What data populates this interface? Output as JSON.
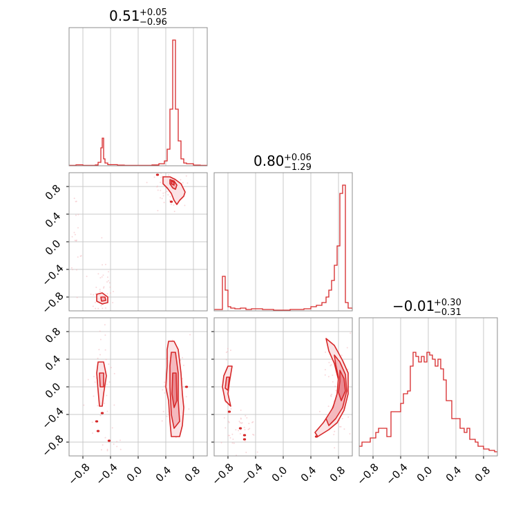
{
  "colors": {
    "main": "#d62728",
    "fill": "#f2b6bb",
    "grid": "#c8c8c8",
    "frame": "#8c8c8c"
  },
  "tick_labels": [
    "−0.8",
    "−0.4",
    "0.0",
    "0.4",
    "0.8"
  ],
  "chart_data": {
    "type": "corner",
    "grid": true,
    "axis_range": [
      -1,
      1
    ],
    "ticks": [
      -0.8,
      -0.4,
      0.0,
      0.4,
      0.8
    ],
    "parameters": [
      {
        "median": "0.51",
        "plus": "+0.05",
        "minus": "−0.96"
      },
      {
        "median": "0.80",
        "plus": "+0.06",
        "minus": "−1.29"
      },
      {
        "median": "−0.01",
        "plus": "+0.30",
        "minus": "−0.31"
      }
    ],
    "marginals": [
      {
        "param": 1,
        "bins": [
          {
            "x": -1.0,
            "h": 0.003
          },
          {
            "x": -0.9,
            "h": 0.007
          },
          {
            "x": -0.8,
            "h": 0.003
          },
          {
            "x": -0.7,
            "h": 0.003
          },
          {
            "x": -0.62,
            "h": 0.006
          },
          {
            "x": -0.58,
            "h": 0.025
          },
          {
            "x": -0.54,
            "h": 0.13
          },
          {
            "x": -0.52,
            "h": 0.2
          },
          {
            "x": -0.5,
            "h": 0.05
          },
          {
            "x": -0.48,
            "h": 0.02
          },
          {
            "x": -0.44,
            "h": 0.008
          },
          {
            "x": -0.3,
            "h": 0.005
          },
          {
            "x": -0.2,
            "h": 0.003
          },
          {
            "x": 0.0,
            "h": 0.003
          },
          {
            "x": 0.2,
            "h": 0.006
          },
          {
            "x": 0.3,
            "h": 0.015
          },
          {
            "x": 0.38,
            "h": 0.035
          },
          {
            "x": 0.42,
            "h": 0.12
          },
          {
            "x": 0.46,
            "h": 0.41
          },
          {
            "x": 0.5,
            "h": 0.91
          },
          {
            "x": 0.54,
            "h": 0.41
          },
          {
            "x": 0.58,
            "h": 0.18
          },
          {
            "x": 0.62,
            "h": 0.05
          },
          {
            "x": 0.66,
            "h": 0.02
          },
          {
            "x": 0.7,
            "h": 0.015
          },
          {
            "x": 0.8,
            "h": 0.005
          },
          {
            "x": 0.9,
            "h": 0.003
          },
          {
            "x": 1.0,
            "h": 0.003
          }
        ]
      },
      {
        "param": 2,
        "bins": [
          {
            "x": -1.0,
            "h": 0.01
          },
          {
            "x": -0.88,
            "h": 0.25
          },
          {
            "x": -0.84,
            "h": 0.15
          },
          {
            "x": -0.8,
            "h": 0.03
          },
          {
            "x": -0.76,
            "h": 0.02
          },
          {
            "x": -0.7,
            "h": 0.015
          },
          {
            "x": -0.62,
            "h": 0.02
          },
          {
            "x": -0.54,
            "h": 0.01
          },
          {
            "x": -0.46,
            "h": 0.015
          },
          {
            "x": -0.3,
            "h": 0.01
          },
          {
            "x": -0.14,
            "h": 0.005
          },
          {
            "x": 0.1,
            "h": 0.01
          },
          {
            "x": 0.3,
            "h": 0.015
          },
          {
            "x": 0.4,
            "h": 0.03
          },
          {
            "x": 0.48,
            "h": 0.04
          },
          {
            "x": 0.56,
            "h": 0.06
          },
          {
            "x": 0.62,
            "h": 0.1
          },
          {
            "x": 0.66,
            "h": 0.15
          },
          {
            "x": 0.7,
            "h": 0.22
          },
          {
            "x": 0.74,
            "h": 0.33
          },
          {
            "x": 0.78,
            "h": 0.47
          },
          {
            "x": 0.82,
            "h": 0.85
          },
          {
            "x": 0.86,
            "h": 0.91
          },
          {
            "x": 0.9,
            "h": 0.06
          },
          {
            "x": 0.94,
            "h": 0.02
          },
          {
            "x": 1.0,
            "h": 0.01
          }
        ]
      },
      {
        "param": 3,
        "bins": [
          {
            "x": -1.0,
            "h": 0.07
          },
          {
            "x": -0.96,
            "h": 0.1
          },
          {
            "x": -0.88,
            "h": 0.1
          },
          {
            "x": -0.84,
            "h": 0.13
          },
          {
            "x": -0.8,
            "h": 0.13
          },
          {
            "x": -0.76,
            "h": 0.17
          },
          {
            "x": -0.72,
            "h": 0.2
          },
          {
            "x": -0.68,
            "h": 0.2
          },
          {
            "x": -0.64,
            "h": 0.2
          },
          {
            "x": -0.6,
            "h": 0.14
          },
          {
            "x": -0.54,
            "h": 0.32
          },
          {
            "x": -0.48,
            "h": 0.32
          },
          {
            "x": -0.4,
            "h": 0.38
          },
          {
            "x": -0.36,
            "h": 0.45
          },
          {
            "x": -0.3,
            "h": 0.47
          },
          {
            "x": -0.26,
            "h": 0.65
          },
          {
            "x": -0.22,
            "h": 0.75
          },
          {
            "x": -0.18,
            "h": 0.72
          },
          {
            "x": -0.14,
            "h": 0.68
          },
          {
            "x": -0.1,
            "h": 0.72
          },
          {
            "x": -0.06,
            "h": 0.68
          },
          {
            "x": -0.02,
            "h": 0.75
          },
          {
            "x": 0.02,
            "h": 0.73
          },
          {
            "x": 0.06,
            "h": 0.7
          },
          {
            "x": 0.1,
            "h": 0.65
          },
          {
            "x": 0.14,
            "h": 0.7
          },
          {
            "x": 0.18,
            "h": 0.63
          },
          {
            "x": 0.22,
            "h": 0.55
          },
          {
            "x": 0.26,
            "h": 0.4
          },
          {
            "x": 0.3,
            "h": 0.4
          },
          {
            "x": 0.34,
            "h": 0.27
          },
          {
            "x": 0.4,
            "h": 0.27
          },
          {
            "x": 0.46,
            "h": 0.2
          },
          {
            "x": 0.52,
            "h": 0.17
          },
          {
            "x": 0.56,
            "h": 0.2
          },
          {
            "x": 0.6,
            "h": 0.12
          },
          {
            "x": 0.68,
            "h": 0.1
          },
          {
            "x": 0.72,
            "h": 0.07
          },
          {
            "x": 0.8,
            "h": 0.05
          },
          {
            "x": 0.88,
            "h": 0.04
          },
          {
            "x": 0.96,
            "h": 0.03
          }
        ]
      }
    ],
    "joint": [
      {
        "x_param": 1,
        "y_param": 2,
        "regions": [
          {
            "outer": [
              [
                0.36,
                0.94
              ],
              [
                0.46,
                0.94
              ],
              [
                0.54,
                0.9
              ],
              [
                0.62,
                0.84
              ],
              [
                0.68,
                0.72
              ],
              [
                0.66,
                0.66
              ],
              [
                0.6,
                0.6
              ],
              [
                0.56,
                0.54
              ],
              [
                0.52,
                0.6
              ],
              [
                0.48,
                0.7
              ],
              [
                0.42,
                0.78
              ],
              [
                0.36,
                0.84
              ]
            ],
            "inner": [
              [
                0.46,
                0.9
              ],
              [
                0.52,
                0.88
              ],
              [
                0.56,
                0.82
              ],
              [
                0.54,
                0.76
              ],
              [
                0.5,
                0.78
              ],
              [
                0.46,
                0.84
              ]
            ],
            "core": [
              [
                0.48,
                0.88
              ],
              [
                0.52,
                0.86
              ],
              [
                0.52,
                0.82
              ],
              [
                0.48,
                0.84
              ]
            ]
          },
          {
            "outer": [
              [
                -0.6,
                -0.76
              ],
              [
                -0.52,
                -0.74
              ],
              [
                -0.44,
                -0.8
              ],
              [
                -0.44,
                -0.88
              ],
              [
                -0.52,
                -0.9
              ],
              [
                -0.6,
                -0.86
              ]
            ],
            "inner": [
              [
                -0.54,
                -0.8
              ],
              [
                -0.48,
                -0.8
              ],
              [
                -0.47,
                -0.85
              ],
              [
                -0.53,
                -0.86
              ]
            ]
          }
        ],
        "blobs": [
          [
            0.28,
            0.97
          ],
          [
            0.48,
            0.58
          ]
        ],
        "scatter_clusters": [
          {
            "cx": 0.5,
            "cy": 0.75,
            "sx": 0.12,
            "sy": 0.15,
            "n": 60
          },
          {
            "cx": -0.5,
            "cy": -0.65,
            "sx": 0.1,
            "sy": 0.22,
            "n": 40
          },
          {
            "cx": -0.9,
            "cy": 0.0,
            "sx": 0.05,
            "sy": 0.4,
            "n": 20
          }
        ]
      },
      {
        "x_param": 1,
        "y_param": 3,
        "regions": [
          {
            "outer": [
              [
                0.44,
                0.66
              ],
              [
                0.52,
                0.66
              ],
              [
                0.58,
                0.54
              ],
              [
                0.62,
                0.2
              ],
              [
                0.64,
                -0.1
              ],
              [
                0.66,
                -0.3
              ],
              [
                0.64,
                -0.56
              ],
              [
                0.6,
                -0.72
              ],
              [
                0.48,
                -0.72
              ],
              [
                0.46,
                -0.5
              ],
              [
                0.44,
                -0.2
              ],
              [
                0.4,
                0.0
              ],
              [
                0.42,
                0.3
              ],
              [
                0.42,
                0.54
              ]
            ],
            "inner": [
              [
                0.48,
                0.5
              ],
              [
                0.54,
                0.5
              ],
              [
                0.58,
                0.2
              ],
              [
                0.58,
                -0.2
              ],
              [
                0.6,
                -0.5
              ],
              [
                0.52,
                -0.6
              ],
              [
                0.48,
                -0.4
              ],
              [
                0.46,
                0.0
              ],
              [
                0.46,
                0.3
              ]
            ],
            "core": [
              [
                0.5,
                0.2
              ],
              [
                0.55,
                0.2
              ],
              [
                0.56,
                -0.2
              ],
              [
                0.52,
                -0.3
              ],
              [
                0.49,
                -0.1
              ]
            ]
          },
          {
            "outer": [
              [
                -0.58,
                0.36
              ],
              [
                -0.5,
                0.36
              ],
              [
                -0.46,
                0.16
              ],
              [
                -0.5,
                -0.1
              ],
              [
                -0.52,
                -0.28
              ],
              [
                -0.56,
                -0.28
              ],
              [
                -0.58,
                -0.05
              ],
              [
                -0.6,
                0.2
              ]
            ],
            "inner": [
              [
                -0.56,
                0.2
              ],
              [
                -0.5,
                0.2
              ],
              [
                -0.5,
                0.0
              ],
              [
                -0.55,
                0.0
              ]
            ]
          }
        ],
        "blobs": [
          [
            -0.52,
            -0.38
          ],
          [
            -0.58,
            -0.64
          ],
          [
            -0.42,
            -0.78
          ],
          [
            -0.6,
            -0.5
          ],
          [
            0.7,
            0.0
          ]
        ],
        "scatter_clusters": [
          {
            "cx": 0.52,
            "cy": 0.0,
            "sx": 0.08,
            "sy": 0.4,
            "n": 60
          },
          {
            "cx": -0.52,
            "cy": 0.0,
            "sx": 0.1,
            "sy": 0.45,
            "n": 40
          },
          {
            "cx": -0.4,
            "cy": -0.85,
            "sx": 0.1,
            "sy": 0.08,
            "n": 10
          }
        ]
      },
      {
        "x_param": 2,
        "y_param": 3,
        "regions": [
          {
            "outer": [
              [
                0.62,
                0.7
              ],
              [
                0.74,
                0.6
              ],
              [
                0.86,
                0.38
              ],
              [
                0.94,
                0.2
              ],
              [
                0.94,
                -0.1
              ],
              [
                0.88,
                -0.34
              ],
              [
                0.78,
                -0.52
              ],
              [
                0.66,
                -0.62
              ],
              [
                0.5,
                -0.72
              ],
              [
                0.46,
                -0.66
              ],
              [
                0.58,
                -0.52
              ],
              [
                0.7,
                -0.34
              ],
              [
                0.78,
                -0.14
              ],
              [
                0.8,
                0.1
              ],
              [
                0.74,
                0.34
              ],
              [
                0.66,
                0.52
              ]
            ],
            "inner": [
              [
                0.74,
                0.46
              ],
              [
                0.82,
                0.36
              ],
              [
                0.9,
                0.18
              ],
              [
                0.92,
                -0.06
              ],
              [
                0.86,
                -0.3
              ],
              [
                0.76,
                -0.46
              ],
              [
                0.66,
                -0.56
              ],
              [
                0.62,
                -0.46
              ],
              [
                0.72,
                -0.3
              ],
              [
                0.78,
                -0.1
              ],
              [
                0.8,
                0.14
              ],
              [
                0.76,
                0.32
              ]
            ],
            "core": [
              [
                0.82,
                0.24
              ],
              [
                0.88,
                0.12
              ],
              [
                0.9,
                -0.06
              ],
              [
                0.84,
                -0.2
              ],
              [
                0.8,
                -0.08
              ],
              [
                0.82,
                0.08
              ]
            ]
          },
          {
            "outer": [
              [
                -0.8,
                0.3
              ],
              [
                -0.74,
                0.3
              ],
              [
                -0.78,
                0.06
              ],
              [
                -0.8,
                -0.1
              ],
              [
                -0.76,
                -0.28
              ],
              [
                -0.84,
                -0.2
              ],
              [
                -0.88,
                0.0
              ],
              [
                -0.86,
                0.16
              ]
            ],
            "inner": [
              [
                -0.82,
                0.14
              ],
              [
                -0.78,
                0.14
              ],
              [
                -0.8,
                -0.05
              ],
              [
                -0.84,
                -0.02
              ]
            ]
          }
        ],
        "blobs": [
          [
            -0.78,
            -0.36
          ],
          [
            -0.62,
            -0.6
          ],
          [
            -0.56,
            -0.7
          ],
          [
            -0.56,
            -0.76
          ],
          [
            0.48,
            -0.72
          ]
        ],
        "scatter_clusters": [
          {
            "cx": 0.78,
            "cy": 0.0,
            "sx": 0.12,
            "sy": 0.4,
            "n": 60
          },
          {
            "cx": -0.62,
            "cy": -0.6,
            "sx": 0.15,
            "sy": 0.2,
            "n": 40
          },
          {
            "cx": -0.82,
            "cy": 0.0,
            "sx": 0.05,
            "sy": 0.3,
            "n": 20
          }
        ]
      }
    ]
  }
}
